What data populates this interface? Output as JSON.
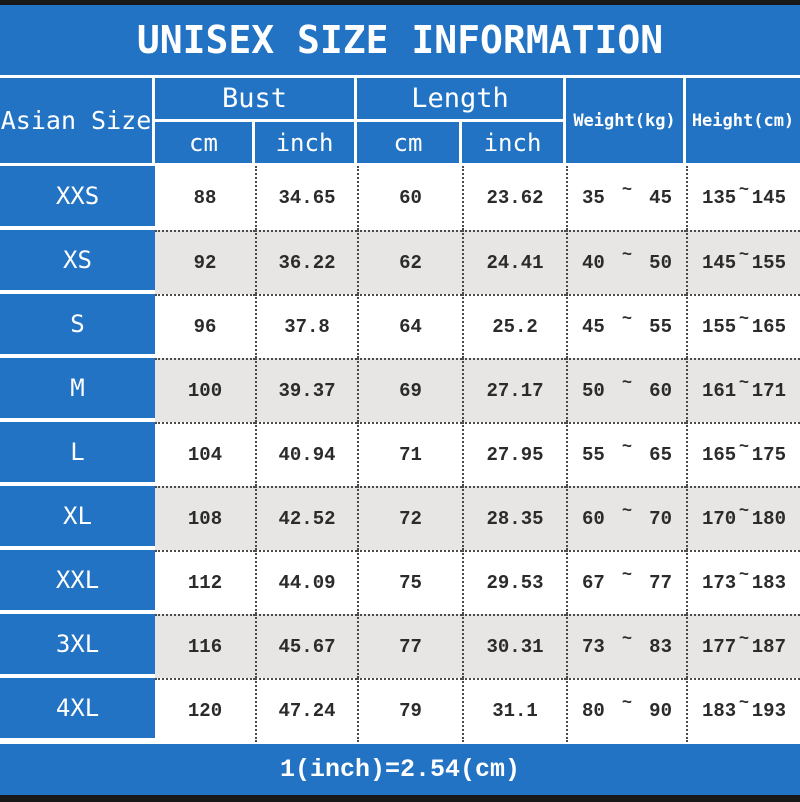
{
  "title": "UNISEX SIZE INFORMATION",
  "footer_note": "1(inch)=2.54(cm)",
  "colors": {
    "blue": "#2273c4",
    "alt_row": "#e7e6e4",
    "bar": "#181818",
    "text_dark": "#2b2b2b"
  },
  "table": {
    "corner_header": "Asian Size",
    "group_headers": {
      "bust": "Bust",
      "length": "Length"
    },
    "sub_headers": {
      "bust_cm": "cm",
      "bust_inch": "inch",
      "length_cm": "cm",
      "length_inch": "inch"
    },
    "single_headers": {
      "weight": "Weight(kg)",
      "height": "Height(cm)"
    },
    "range_separator": "~",
    "rows": [
      {
        "size": "XXS",
        "bust_cm": "88",
        "bust_inch": "34.65",
        "length_cm": "60",
        "length_inch": "23.62",
        "weight_min": "35",
        "weight_max": "45",
        "height_min": "135",
        "height_max": "145"
      },
      {
        "size": "XS",
        "bust_cm": "92",
        "bust_inch": "36.22",
        "length_cm": "62",
        "length_inch": "24.41",
        "weight_min": "40",
        "weight_max": "50",
        "height_min": "145",
        "height_max": "155"
      },
      {
        "size": "S",
        "bust_cm": "96",
        "bust_inch": "37.8",
        "length_cm": "64",
        "length_inch": "25.2",
        "weight_min": "45",
        "weight_max": "55",
        "height_min": "155",
        "height_max": "165"
      },
      {
        "size": "M",
        "bust_cm": "100",
        "bust_inch": "39.37",
        "length_cm": "69",
        "length_inch": "27.17",
        "weight_min": "50",
        "weight_max": "60",
        "height_min": "161",
        "height_max": "171"
      },
      {
        "size": "L",
        "bust_cm": "104",
        "bust_inch": "40.94",
        "length_cm": "71",
        "length_inch": "27.95",
        "weight_min": "55",
        "weight_max": "65",
        "height_min": "165",
        "height_max": "175"
      },
      {
        "size": "XL",
        "bust_cm": "108",
        "bust_inch": "42.52",
        "length_cm": "72",
        "length_inch": "28.35",
        "weight_min": "60",
        "weight_max": "70",
        "height_min": "170",
        "height_max": "180"
      },
      {
        "size": "XXL",
        "bust_cm": "112",
        "bust_inch": "44.09",
        "length_cm": "75",
        "length_inch": "29.53",
        "weight_min": "67",
        "weight_max": "77",
        "height_min": "173",
        "height_max": "183"
      },
      {
        "size": "3XL",
        "bust_cm": "116",
        "bust_inch": "45.67",
        "length_cm": "77",
        "length_inch": "30.31",
        "weight_min": "73",
        "weight_max": "83",
        "height_min": "177",
        "height_max": "187"
      },
      {
        "size": "4XL",
        "bust_cm": "120",
        "bust_inch": "47.24",
        "length_cm": "79",
        "length_inch": "31.1",
        "weight_min": "80",
        "weight_max": "90",
        "height_min": "183",
        "height_max": "193"
      }
    ]
  }
}
